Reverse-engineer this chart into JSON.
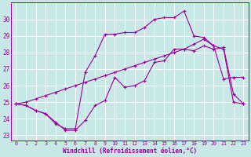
{
  "xlabel": "Windchill (Refroidissement éolien,°C)",
  "background_color": "#c8e8e8",
  "grid_color": "#ffffff",
  "line_color": "#990099",
  "line1_x": [
    0,
    1,
    2,
    3,
    4,
    5,
    6,
    7,
    8,
    9,
    10,
    11,
    12,
    13,
    14,
    15,
    16,
    17,
    18,
    19,
    20,
    21,
    22,
    23
  ],
  "line1_y": [
    24.9,
    24.8,
    24.5,
    24.3,
    23.8,
    23.3,
    23.3,
    23.9,
    24.8,
    25.1,
    26.5,
    25.9,
    26.0,
    26.3,
    27.4,
    27.5,
    28.2,
    28.2,
    28.1,
    28.4,
    28.2,
    28.3,
    25.5,
    24.9
  ],
  "line2_x": [
    0,
    1,
    2,
    3,
    4,
    5,
    6,
    7,
    8,
    9,
    10,
    11,
    12,
    13,
    14,
    15,
    16,
    17,
    18,
    19,
    20,
    21,
    22,
    23
  ],
  "line2_y": [
    24.9,
    25.0,
    25.2,
    25.4,
    25.6,
    25.8,
    26.0,
    26.2,
    26.4,
    26.6,
    26.8,
    27.0,
    27.2,
    27.4,
    27.6,
    27.8,
    28.0,
    28.2,
    28.5,
    28.8,
    28.4,
    28.2,
    25.0,
    24.9
  ],
  "line3_x": [
    0,
    1,
    2,
    3,
    4,
    5,
    6,
    7,
    8,
    9,
    10,
    11,
    12,
    13,
    14,
    15,
    16,
    17,
    18,
    19,
    20,
    21,
    22,
    23
  ],
  "line3_y": [
    24.9,
    24.8,
    24.5,
    24.3,
    23.7,
    23.4,
    23.4,
    26.8,
    27.8,
    29.1,
    29.1,
    29.2,
    29.2,
    29.5,
    30.0,
    30.1,
    30.1,
    30.5,
    29.0,
    28.9,
    28.4,
    26.4,
    26.5,
    26.5
  ],
  "ylim": [
    22.7,
    31.0
  ],
  "yticks": [
    23,
    24,
    25,
    26,
    27,
    28,
    29,
    30
  ],
  "xlim": [
    -0.5,
    23.5
  ],
  "xticks": [
    0,
    1,
    2,
    3,
    4,
    5,
    6,
    7,
    8,
    9,
    10,
    11,
    12,
    13,
    14,
    15,
    16,
    17,
    18,
    19,
    20,
    21,
    22,
    23
  ],
  "fig_width": 3.2,
  "fig_height": 2.0,
  "dpi": 100
}
